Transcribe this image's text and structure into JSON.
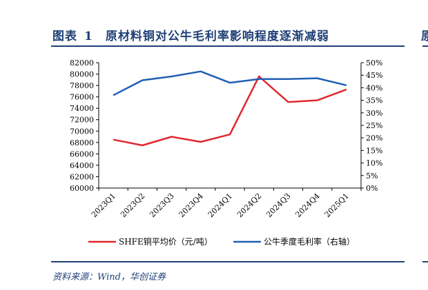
{
  "figure": {
    "title_prefix": "图表",
    "title_number": "1",
    "title_text": "原材料铜对公牛毛利率影响程度逐渐减弱",
    "next_title_fragment": "原",
    "source": "资料来源：Wind，华创证券"
  },
  "chart_data": {
    "type": "line",
    "categories": [
      "2023Q1",
      "2023Q2",
      "2023Q3",
      "2023Q4",
      "2024Q1",
      "2024Q2",
      "2024Q3",
      "2024Q4",
      "2025Q1"
    ],
    "series": [
      {
        "name": "SHFE铜平均价（元/吨）",
        "axis": "left",
        "color": "#e0262e",
        "values": [
          68500,
          67500,
          69000,
          68100,
          69400,
          79600,
          75100,
          75400,
          77300
        ]
      },
      {
        "name": "公牛季度毛利率（右轴）",
        "axis": "right",
        "color": "#1f5fb4",
        "values": [
          37.0,
          43.0,
          44.5,
          46.5,
          42.0,
          43.5,
          43.5,
          43.8,
          41.0
        ]
      }
    ],
    "left_axis": {
      "ylim": [
        60000,
        82000
      ],
      "ticks": [
        "82000",
        "80000",
        "78000",
        "76000",
        "74000",
        "72000",
        "70000",
        "68000",
        "66000",
        "64000",
        "62000",
        "60000"
      ]
    },
    "right_axis": {
      "ylim": [
        0,
        50
      ],
      "unit": "%",
      "ticks": [
        "50%",
        "45%",
        "40%",
        "35%",
        "30%",
        "25%",
        "20%",
        "15%",
        "10%",
        "5%",
        "0%"
      ]
    },
    "grid": false,
    "legend_position": "bottom"
  }
}
